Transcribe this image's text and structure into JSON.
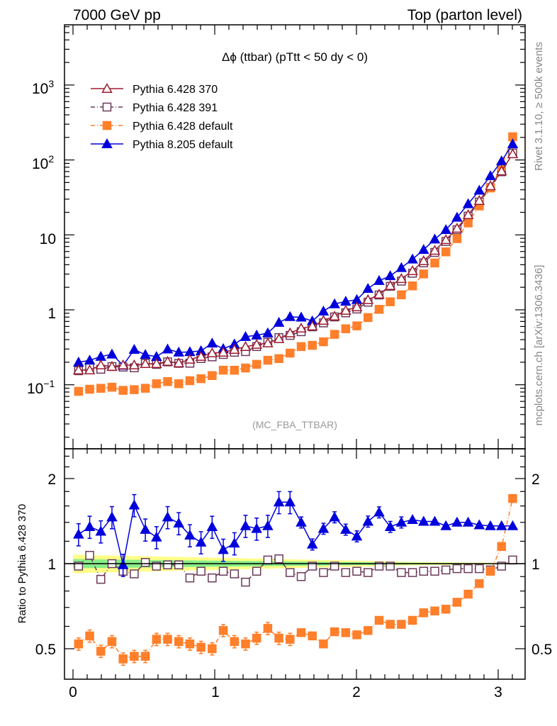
{
  "header": {
    "left": "7000 GeV pp",
    "right": "Top (parton level)"
  },
  "side_labels": {
    "rivet": "Rivet 3.1.10, ≥ 500k events",
    "mcplots": "mcplots.cern.ch [arXiv:1306.3436]"
  },
  "chart_data": {
    "type": "line",
    "title": "Δϕ (ttbar) (pTtt < 50 dy < 0)",
    "analysis": "(MC_FBA_TTBAR)",
    "xlabel": "",
    "ylabel": "",
    "ratio_ylabel": "Ratio to Pythia 6.428 370",
    "xlim": [
      -0.06,
      3.19
    ],
    "ylim": [
      0.014,
      6300
    ],
    "yscale": "log",
    "ratio_ylim": [
      0.39,
      2.55
    ],
    "x_ticks": [
      "0",
      "1",
      "2",
      "3"
    ],
    "y_ticks": [
      {
        "base": "10",
        "exp": "3"
      },
      {
        "base": "10",
        "exp": "2"
      },
      {
        "base": "10",
        "exp": ""
      },
      {
        "base": "1",
        "exp": ""
      },
      {
        "base": "10",
        "exp": "−1"
      }
    ],
    "ratio_ticks": [
      "2",
      "1",
      "0.5"
    ],
    "legend_position": "top-left",
    "n_bins": 40,
    "x_max": 3.14159,
    "reference": {
      "name": "Pythia 6.428 370",
      "color": "#9b1b30",
      "values": [
        0.157,
        0.157,
        0.183,
        0.175,
        0.183,
        0.183,
        0.191,
        0.191,
        0.204,
        0.195,
        0.218,
        0.238,
        0.265,
        0.27,
        0.295,
        0.322,
        0.344,
        0.36,
        0.41,
        0.49,
        0.567,
        0.605,
        0.72,
        0.82,
        0.98,
        1.09,
        1.36,
        1.61,
        2.1,
        2.6,
        3.31,
        4.5,
        6.2,
        8.6,
        12.2,
        18.5,
        28.6,
        45,
        71,
        120
      ],
      "band_yellow": [
        0.075,
        0.072,
        0.07,
        0.068,
        0.066,
        0.064,
        0.062,
        0.06,
        0.058,
        0.056,
        0.054,
        0.052,
        0.05,
        0.048,
        0.046,
        0.044,
        0.042,
        0.04,
        0.038,
        0.036,
        0.034,
        0.032,
        0.03,
        0.028,
        0.026,
        0.024,
        0.022,
        0.02,
        0.018,
        0.016,
        0.014,
        0.013,
        0.012,
        0.011,
        0.01,
        0.009,
        0.008,
        0.007,
        0.006,
        0.005
      ],
      "band_green_fraction": 0.5
    },
    "series": [
      {
        "name": "Pythia 6.428 391",
        "color": "#6b3a5a",
        "marker": "open-square",
        "dash": "6,3,1,3",
        "ratio": [
          0.98,
          1.07,
          0.88,
          1.0,
          0.94,
          0.92,
          1.01,
          0.98,
          0.99,
          0.99,
          0.89,
          0.94,
          0.89,
          0.94,
          0.92,
          0.86,
          0.94,
          1.03,
          1.04,
          0.93,
          0.9,
          0.98,
          0.93,
          0.98,
          0.93,
          0.94,
          0.93,
          0.98,
          0.98,
          0.93,
          0.93,
          0.94,
          0.94,
          0.95,
          0.96,
          0.96,
          0.96,
          0.95,
          0.98,
          1.03
        ],
        "rel_err": 0.03
      },
      {
        "name": "Pythia 6.428 default",
        "color": "#ff7f2a",
        "marker": "filled-square",
        "dash": "6,3,1,3",
        "ratio": [
          0.52,
          0.555,
          0.49,
          0.53,
          0.46,
          0.47,
          0.47,
          0.54,
          0.54,
          0.53,
          0.52,
          0.506,
          0.5,
          0.58,
          0.53,
          0.52,
          0.545,
          0.59,
          0.545,
          0.54,
          0.57,
          0.555,
          0.52,
          0.574,
          0.57,
          0.56,
          0.58,
          0.63,
          0.61,
          0.61,
          0.63,
          0.67,
          0.68,
          0.69,
          0.73,
          0.78,
          0.85,
          0.94,
          1.15,
          1.7
        ],
        "rel_err": 0.05
      },
      {
        "name": "Pythia 8.205 default",
        "color": "#0000dd",
        "marker": "filled-triangle",
        "dash": "",
        "ratio": [
          1.27,
          1.35,
          1.3,
          1.46,
          0.99,
          1.61,
          1.32,
          1.24,
          1.46,
          1.39,
          1.26,
          1.19,
          1.35,
          1.12,
          1.18,
          1.36,
          1.33,
          1.36,
          1.65,
          1.65,
          1.4,
          1.17,
          1.33,
          1.46,
          1.32,
          1.25,
          1.41,
          1.52,
          1.35,
          1.4,
          1.43,
          1.41,
          1.41,
          1.36,
          1.4,
          1.4,
          1.37,
          1.36,
          1.36,
          1.36
        ],
        "rel_err": 0.09
      }
    ]
  }
}
